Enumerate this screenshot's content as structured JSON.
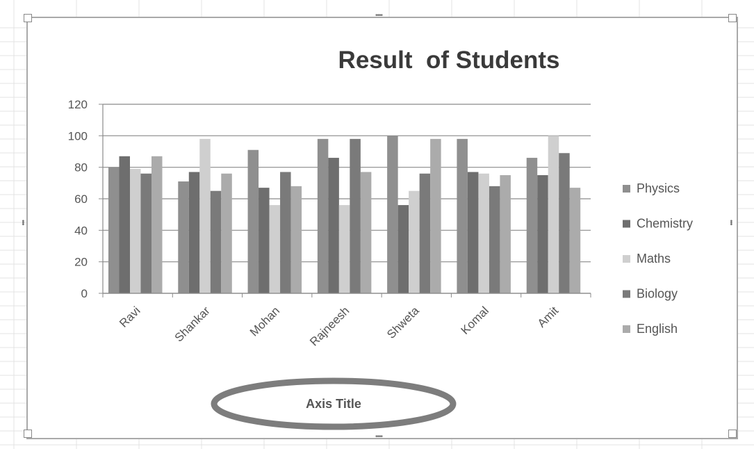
{
  "chart_data": {
    "type": "bar",
    "title": "Result  of Students",
    "xlabel": "Axis Title",
    "ylabel": "",
    "ylim": [
      0,
      120
    ],
    "yticks": [
      0,
      20,
      40,
      60,
      80,
      100,
      120
    ],
    "grid": true,
    "legend_position": "right",
    "categories": [
      "Ravi",
      "Shankar",
      "Mohan",
      "Rajneesh",
      "Shweta",
      "Komal",
      "Amit"
    ],
    "series": [
      {
        "name": "Physics",
        "color": "#8f8f8f",
        "values": [
          80,
          71,
          91,
          98,
          100,
          98,
          86
        ]
      },
      {
        "name": "Chemistry",
        "color": "#6e6e6e",
        "values": [
          87,
          77,
          67,
          86,
          56,
          77,
          75
        ]
      },
      {
        "name": "Maths",
        "color": "#cfcfcf",
        "values": [
          79,
          98,
          56,
          56,
          65,
          76,
          100
        ]
      },
      {
        "name": "Biology",
        "color": "#7a7a7a",
        "values": [
          76,
          65,
          77,
          98,
          76,
          68,
          89
        ]
      },
      {
        "name": "English",
        "color": "#ababab",
        "values": [
          87,
          76,
          68,
          77,
          98,
          75,
          67
        ]
      }
    ]
  }
}
